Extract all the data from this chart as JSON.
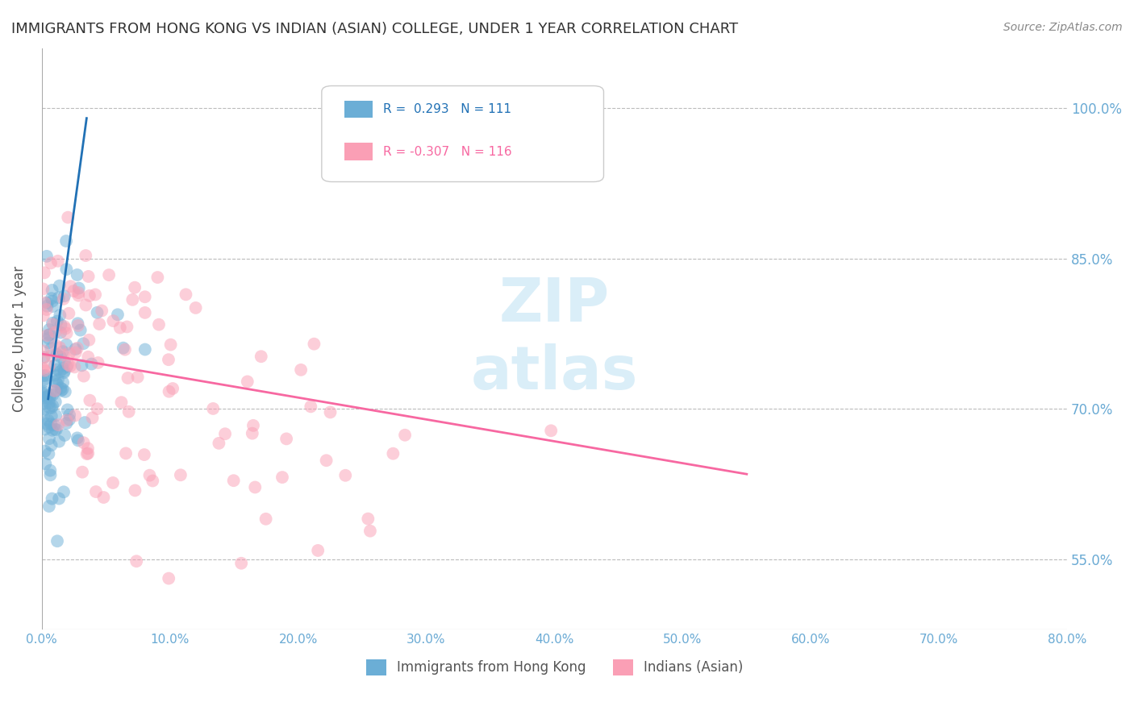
{
  "title": "IMMIGRANTS FROM HONG KONG VS INDIAN (ASIAN) COLLEGE, UNDER 1 YEAR CORRELATION CHART",
  "source": "Source: ZipAtlas.com",
  "ylabel": "College, Under 1 year",
  "xlim": [
    0.0,
    80.0
  ],
  "ylim_low": 48.0,
  "ylim_high": 106.0,
  "legend_labels": [
    "Immigrants from Hong Kong",
    "Indians (Asian)"
  ],
  "hk_R": 0.293,
  "hk_N": 111,
  "ind_R": -0.307,
  "ind_N": 116,
  "blue_color": "#6baed6",
  "pink_color": "#fa9fb5",
  "blue_line_color": "#2171b5",
  "pink_line_color": "#f768a1",
  "grid_color": "#bbbbbb",
  "title_color": "#333333",
  "axis_label_color": "#555555",
  "tick_label_color": "#6aaad4",
  "watermark_color": "#daeef8",
  "background_color": "#ffffff",
  "yticks": [
    55.0,
    70.0,
    85.0,
    100.0
  ],
  "xticks": [
    0,
    10,
    20,
    30,
    40,
    50,
    60,
    70,
    80
  ],
  "blue_line_x": [
    0.5,
    3.5
  ],
  "blue_line_y": [
    71.0,
    99.0
  ],
  "pink_line_x": [
    0.0,
    55.0
  ],
  "pink_line_y": [
    75.5,
    63.5
  ]
}
